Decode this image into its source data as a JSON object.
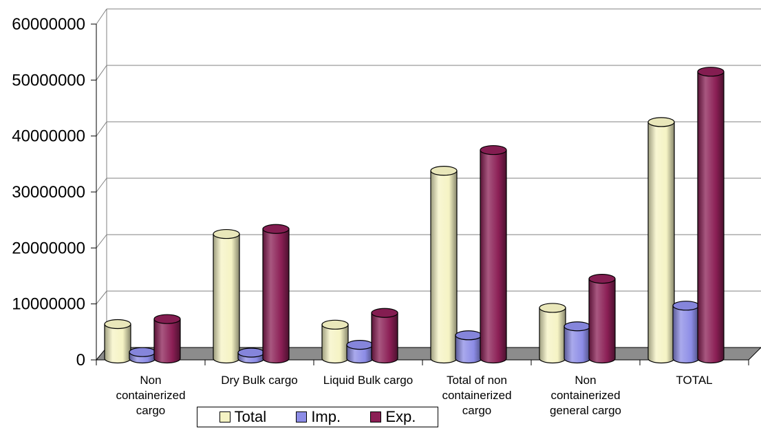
{
  "chart_data": {
    "type": "bar",
    "categories": [
      "Non containerized cargo",
      "Dry Bulk cargo",
      "Liquid Bulk cargo",
      "Total of non containerized cargo",
      "Non containerized general cargo",
      "TOTAL"
    ],
    "category_label_lines": [
      [
        "Non",
        "containerized",
        "cargo"
      ],
      [
        "Dry Bulk cargo"
      ],
      [
        "Liquid Bulk cargo"
      ],
      [
        "Total of non",
        "containerized",
        "cargo"
      ],
      [
        "Non",
        "containerized",
        "general cargo"
      ],
      [
        "TOTAL"
      ]
    ],
    "series": [
      {
        "name": "Total",
        "color": "#f5f3c4",
        "values": [
          5900000,
          22000000,
          5800000,
          33300000,
          8800000,
          42000000
        ]
      },
      {
        "name": "Imp.",
        "color": "#8c8ce6",
        "values": [
          900000,
          800000,
          2200000,
          3900000,
          5500000,
          9200000
        ]
      },
      {
        "name": "Exp.",
        "color": "#8b1f55",
        "values": [
          6800000,
          22900000,
          7900000,
          37000000,
          14000000,
          51000000
        ]
      }
    ],
    "y_ticks": [
      "0",
      "10000000",
      "20000000",
      "30000000",
      "40000000",
      "50000000",
      "60000000"
    ],
    "ylim": [
      0,
      60000000
    ],
    "grid": true,
    "legend_position": "bottom",
    "title": "",
    "xlabel": "",
    "ylabel": ""
  }
}
